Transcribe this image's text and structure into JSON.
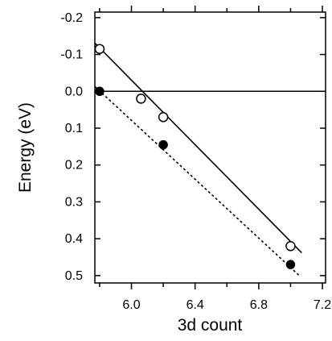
{
  "chart_data": {
    "type": "scatter",
    "xlabel": "3d count",
    "ylabel": "Energy (eV)",
    "xlim": [
      5.77,
      7.22
    ],
    "ylim": [
      0.52,
      -0.215
    ],
    "y_inverted": true,
    "xticks": [
      6.0,
      6.4,
      6.8,
      7.2
    ],
    "xtick_labels": [
      "6.0",
      "6.4",
      "6.8",
      "7.2"
    ],
    "xtick_minor": [
      5.8,
      6.2,
      6.6,
      7.0
    ],
    "yticks": [
      -0.2,
      -0.1,
      0.0,
      0.1,
      0.2,
      0.3,
      0.4,
      0.5
    ],
    "ytick_labels": [
      "-0.2",
      "-0.1",
      "0.0",
      "0.1",
      "0.2",
      "0.3",
      "0.4",
      "0.5"
    ],
    "zero_line": 0.0,
    "series": [
      {
        "marker": "open-circle",
        "points": [
          [
            5.8,
            -0.115
          ],
          [
            6.06,
            0.02
          ],
          [
            6.2,
            0.07
          ],
          [
            7.0,
            0.42
          ]
        ]
      },
      {
        "marker": "filled-circle",
        "points": [
          [
            5.8,
            0.0
          ],
          [
            6.2,
            0.145
          ],
          [
            7.0,
            0.47
          ]
        ]
      }
    ],
    "fit_lines": [
      {
        "style": "solid",
        "x": [
          5.77,
          7.07
        ],
        "y": [
          -0.131,
          0.438
        ]
      },
      {
        "style": "dotted",
        "x": [
          5.77,
          7.06
        ],
        "y": [
          -0.013,
          0.502
        ]
      }
    ]
  }
}
